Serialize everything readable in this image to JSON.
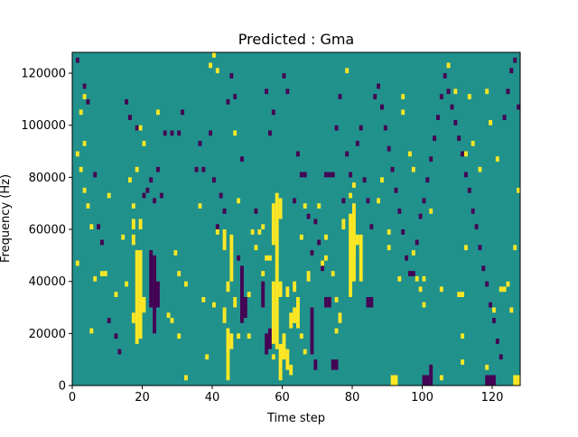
{
  "chart_data": {
    "type": "heatmap",
    "title": "Predicted : Gma",
    "xlabel": "Time step",
    "ylabel": "Frequency (Hz)",
    "xlim": [
      0,
      128
    ],
    "ylim": [
      0,
      128000
    ],
    "xticks": [
      {
        "value": 0,
        "label": "0"
      },
      {
        "value": 20,
        "label": "20"
      },
      {
        "value": 40,
        "label": "40"
      },
      {
        "value": 60,
        "label": "60"
      },
      {
        "value": 80,
        "label": "80"
      },
      {
        "value": 100,
        "label": "100"
      },
      {
        "value": 120,
        "label": "120"
      }
    ],
    "yticks": [
      {
        "value": 0,
        "label": "0"
      },
      {
        "value": 20000,
        "label": "20000"
      },
      {
        "value": 40000,
        "label": "40000"
      },
      {
        "value": 60000,
        "label": "60000"
      },
      {
        "value": 80000,
        "label": "80000"
      },
      {
        "value": 100000,
        "label": "100000"
      },
      {
        "value": 120000,
        "label": "120000"
      }
    ],
    "grid": false,
    "colormap": {
      "background": "#21918c",
      "high": "#fde725",
      "low": "#440154"
    },
    "bin_width_hz": 2000,
    "columns": {
      "high": [
        {
          "x": 18,
          "ranges": [
            [
              16000,
              52000
            ]
          ]
        },
        {
          "x": 19,
          "ranges": [
            [
              18000,
              52000
            ],
            [
              60000,
              64000
            ]
          ]
        },
        {
          "x": 20,
          "ranges": [
            [
              28000,
              34000
            ]
          ]
        },
        {
          "x": 17,
          "ranges": [
            [
              54000,
              58000
            ],
            [
              60000,
              64000
            ],
            [
              24000,
              28000
            ]
          ]
        },
        {
          "x": 44,
          "ranges": [
            [
              2000,
              22000
            ],
            [
              36000,
              40000
            ]
          ]
        },
        {
          "x": 45,
          "ranges": [
            [
              14000,
              20000
            ],
            [
              40000,
              58000
            ]
          ]
        },
        {
          "x": 43,
          "ranges": [
            [
              24000,
              30000
            ],
            [
              52000,
              60000
            ]
          ]
        },
        {
          "x": 46,
          "ranges": [
            [
              30000,
              34000
            ]
          ]
        },
        {
          "x": 57,
          "ranges": [
            [
              16000,
              40000
            ],
            [
              54000,
              70000
            ]
          ]
        },
        {
          "x": 58,
          "ranges": [
            [
              16000,
              74000
            ]
          ]
        },
        {
          "x": 59,
          "ranges": [
            [
              2000,
              16000
            ],
            [
              34000,
              40000
            ],
            [
              64000,
              72000
            ]
          ]
        },
        {
          "x": 60,
          "ranges": [
            [
              10000,
              20000
            ]
          ]
        },
        {
          "x": 61,
          "ranges": [
            [
              6000,
              14000
            ],
            [
              34000,
              38000
            ]
          ]
        },
        {
          "x": 62,
          "ranges": [
            [
              22000,
              28000
            ],
            [
              4000,
              8000
            ]
          ]
        },
        {
          "x": 63,
          "ranges": [
            [
              24000,
              30000
            ],
            [
              36000,
              40000
            ]
          ]
        },
        {
          "x": 64,
          "ranges": [
            [
              24000,
              34000
            ]
          ]
        },
        {
          "x": 79,
          "ranges": [
            [
              34000,
              66000
            ]
          ]
        },
        {
          "x": 80,
          "ranges": [
            [
              40000,
              70000
            ],
            [
              50000,
              56000
            ]
          ]
        },
        {
          "x": 81,
          "ranges": [
            [
              54000,
              58000
            ]
          ]
        },
        {
          "x": 82,
          "ranges": [
            [
              40000,
              58000
            ]
          ]
        },
        {
          "x": 91,
          "ranges": [
            [
              0,
              4000
            ]
          ]
        },
        {
          "x": 92,
          "ranges": [
            [
              0,
              4000
            ]
          ]
        },
        {
          "x": 126,
          "ranges": [
            [
              0,
              4000
            ]
          ]
        },
        {
          "x": 127,
          "ranges": [
            [
              0,
              4000
            ]
          ]
        }
      ],
      "low": [
        {
          "x": 22,
          "ranges": [
            [
              30000,
              52000
            ]
          ]
        },
        {
          "x": 23,
          "ranges": [
            [
              20000,
              50000
            ]
          ]
        },
        {
          "x": 24,
          "ranges": [
            [
              30000,
              40000
            ]
          ]
        },
        {
          "x": 48,
          "ranges": [
            [
              24000,
              46000
            ]
          ]
        },
        {
          "x": 49,
          "ranges": [
            [
              26000,
              34000
            ]
          ]
        },
        {
          "x": 54,
          "ranges": [
            [
              30000,
              40000
            ]
          ]
        },
        {
          "x": 55,
          "ranges": [
            [
              12000,
              20000
            ]
          ]
        },
        {
          "x": 56,
          "ranges": [
            [
              14000,
              22000
            ]
          ]
        },
        {
          "x": 68,
          "ranges": [
            [
              12000,
              30000
            ]
          ]
        },
        {
          "x": 69,
          "ranges": [
            [
              6000,
              10000
            ]
          ]
        },
        {
          "x": 72,
          "ranges": [
            [
              30000,
              34000
            ]
          ]
        },
        {
          "x": 73,
          "ranges": [
            [
              30000,
              34000
            ]
          ]
        },
        {
          "x": 74,
          "ranges": [
            [
              6000,
              10000
            ]
          ]
        },
        {
          "x": 75,
          "ranges": [
            [
              6000,
              10000
            ]
          ]
        },
        {
          "x": 84,
          "ranges": [
            [
              30000,
              34000
            ]
          ]
        },
        {
          "x": 85,
          "ranges": [
            [
              30000,
              34000
            ]
          ]
        },
        {
          "x": 100,
          "ranges": [
            [
              0,
              4000
            ]
          ]
        },
        {
          "x": 101,
          "ranges": [
            [
              0,
              4000
            ]
          ]
        },
        {
          "x": 102,
          "ranges": [
            [
              0,
              8000
            ]
          ]
        },
        {
          "x": 118,
          "ranges": [
            [
              0,
              4000
            ]
          ]
        },
        {
          "x": 119,
          "ranges": [
            [
              0,
              4000
            ]
          ]
        },
        {
          "x": 120,
          "ranges": [
            [
              0,
              4000
            ]
          ]
        }
      ]
    },
    "cells": {
      "high": [
        [
          1,
          88
        ],
        [
          2,
          82
        ],
        [
          3,
          74
        ],
        [
          4,
          68
        ],
        [
          5,
          60
        ],
        [
          2,
          104
        ],
        [
          3,
          110
        ],
        [
          5,
          20
        ],
        [
          6,
          40
        ],
        [
          3,
          92
        ],
        [
          1,
          46
        ],
        [
          8,
          42
        ],
        [
          9,
          42
        ],
        [
          10,
          72
        ],
        [
          12,
          34
        ],
        [
          15,
          38
        ],
        [
          14,
          56
        ],
        [
          16,
          78
        ],
        [
          17,
          68
        ],
        [
          18,
          82
        ],
        [
          19,
          98
        ],
        [
          20,
          92
        ],
        [
          24,
          104
        ],
        [
          29,
          50
        ],
        [
          32,
          38
        ],
        [
          30,
          42
        ],
        [
          27,
          26
        ],
        [
          28,
          24
        ],
        [
          30,
          18
        ],
        [
          32,
          2
        ],
        [
          36,
          68
        ],
        [
          37,
          32
        ],
        [
          38,
          10
        ],
        [
          39,
          122
        ],
        [
          40,
          126
        ],
        [
          40,
          30
        ],
        [
          41,
          120
        ],
        [
          41,
          58
        ],
        [
          46,
          96
        ],
        [
          47,
          70
        ],
        [
          50,
          18
        ],
        [
          52,
          52
        ],
        [
          47,
          18
        ],
        [
          50,
          34
        ],
        [
          51,
          58
        ],
        [
          53,
          58
        ],
        [
          54,
          60
        ],
        [
          55,
          48
        ],
        [
          56,
          48
        ],
        [
          54,
          42
        ],
        [
          57,
          10
        ],
        [
          58,
          14
        ],
        [
          64,
          22
        ],
        [
          65,
          18
        ],
        [
          66,
          12
        ],
        [
          67,
          40
        ],
        [
          67,
          42
        ],
        [
          65,
          56
        ],
        [
          66,
          68
        ],
        [
          70,
          68
        ],
        [
          72,
          56
        ],
        [
          71,
          46
        ],
        [
          72,
          48
        ],
        [
          74,
          42
        ],
        [
          75,
          32
        ],
        [
          75,
          20
        ],
        [
          76,
          24
        ],
        [
          76,
          26
        ],
        [
          77,
          62
        ],
        [
          77,
          60
        ],
        [
          78,
          120
        ],
        [
          79,
          72
        ],
        [
          80,
          76
        ],
        [
          87,
          70
        ],
        [
          88,
          78
        ],
        [
          90,
          58
        ],
        [
          90,
          52
        ],
        [
          93,
          40
        ],
        [
          94,
          104
        ],
        [
          94,
          110
        ],
        [
          96,
          88
        ],
        [
          97,
          82
        ],
        [
          97,
          50
        ],
        [
          98,
          40
        ],
        [
          99,
          36
        ],
        [
          100,
          30
        ],
        [
          100,
          40
        ],
        [
          102,
          66
        ],
        [
          105,
          36
        ],
        [
          105,
          2
        ],
        [
          107,
          122
        ],
        [
          109,
          112
        ],
        [
          110,
          34
        ],
        [
          111,
          34
        ],
        [
          111,
          18
        ],
        [
          111,
          8
        ],
        [
          112,
          52
        ],
        [
          112,
          88
        ],
        [
          113,
          110
        ],
        [
          114,
          92
        ],
        [
          116,
          82
        ],
        [
          118,
          112
        ],
        [
          118,
          6
        ],
        [
          119,
          100
        ],
        [
          120,
          28
        ],
        [
          121,
          86
        ],
        [
          122,
          36
        ],
        [
          123,
          36
        ],
        [
          124,
          38
        ],
        [
          125,
          28
        ],
        [
          126,
          52
        ],
        [
          127,
          74
        ]
      ],
      "low": [
        [
          1,
          124
        ],
        [
          3,
          114
        ],
        [
          4,
          108
        ],
        [
          6,
          80
        ],
        [
          7,
          60
        ],
        [
          8,
          54
        ],
        [
          10,
          24
        ],
        [
          12,
          18
        ],
        [
          13,
          12
        ],
        [
          15,
          108
        ],
        [
          16,
          102
        ],
        [
          18,
          98
        ],
        [
          20,
          72
        ],
        [
          21,
          74
        ],
        [
          22,
          78
        ],
        [
          23,
          70
        ],
        [
          24,
          82
        ],
        [
          25,
          72
        ],
        [
          26,
          96
        ],
        [
          28,
          96
        ],
        [
          30,
          96
        ],
        [
          31,
          104
        ],
        [
          35,
          82
        ],
        [
          36,
          92
        ],
        [
          37,
          82
        ],
        [
          39,
          96
        ],
        [
          40,
          78
        ],
        [
          41,
          60
        ],
        [
          42,
          72
        ],
        [
          43,
          66
        ],
        [
          44,
          108
        ],
        [
          45,
          118
        ],
        [
          46,
          110
        ],
        [
          47,
          48
        ],
        [
          48,
          86
        ],
        [
          52,
          66
        ],
        [
          55,
          112
        ],
        [
          56,
          96
        ],
        [
          57,
          104
        ],
        [
          60,
          118
        ],
        [
          61,
          112
        ],
        [
          63,
          70
        ],
        [
          64,
          88
        ],
        [
          65,
          80
        ],
        [
          66,
          80
        ],
        [
          67,
          64
        ],
        [
          68,
          50
        ],
        [
          69,
          62
        ],
        [
          70,
          54
        ],
        [
          71,
          44
        ],
        [
          72,
          80
        ],
        [
          73,
          80
        ],
        [
          74,
          80
        ],
        [
          75,
          98
        ],
        [
          76,
          110
        ],
        [
          77,
          70
        ],
        [
          78,
          88
        ],
        [
          79,
          80
        ],
        [
          80,
          66
        ],
        [
          81,
          92
        ],
        [
          82,
          98
        ],
        [
          83,
          78
        ],
        [
          84,
          70
        ],
        [
          85,
          60
        ],
        [
          86,
          110
        ],
        [
          87,
          114
        ],
        [
          88,
          106
        ],
        [
          89,
          98
        ],
        [
          90,
          90
        ],
        [
          91,
          82
        ],
        [
          92,
          74
        ],
        [
          93,
          66
        ],
        [
          94,
          58
        ],
        [
          95,
          48
        ],
        [
          96,
          42
        ],
        [
          97,
          42
        ],
        [
          98,
          54
        ],
        [
          99,
          64
        ],
        [
          100,
          70
        ],
        [
          101,
          78
        ],
        [
          102,
          86
        ],
        [
          103,
          94
        ],
        [
          104,
          102
        ],
        [
          105,
          110
        ],
        [
          106,
          118
        ],
        [
          107,
          112
        ],
        [
          108,
          106
        ],
        [
          109,
          100
        ],
        [
          110,
          94
        ],
        [
          111,
          88
        ],
        [
          112,
          80
        ],
        [
          113,
          74
        ],
        [
          114,
          66
        ],
        [
          115,
          60
        ],
        [
          116,
          52
        ],
        [
          117,
          44
        ],
        [
          118,
          38
        ],
        [
          119,
          30
        ],
        [
          120,
          24
        ],
        [
          121,
          16
        ],
        [
          122,
          10
        ],
        [
          123,
          102
        ],
        [
          124,
          112
        ],
        [
          125,
          120
        ],
        [
          126,
          124
        ],
        [
          127,
          106
        ]
      ]
    }
  }
}
